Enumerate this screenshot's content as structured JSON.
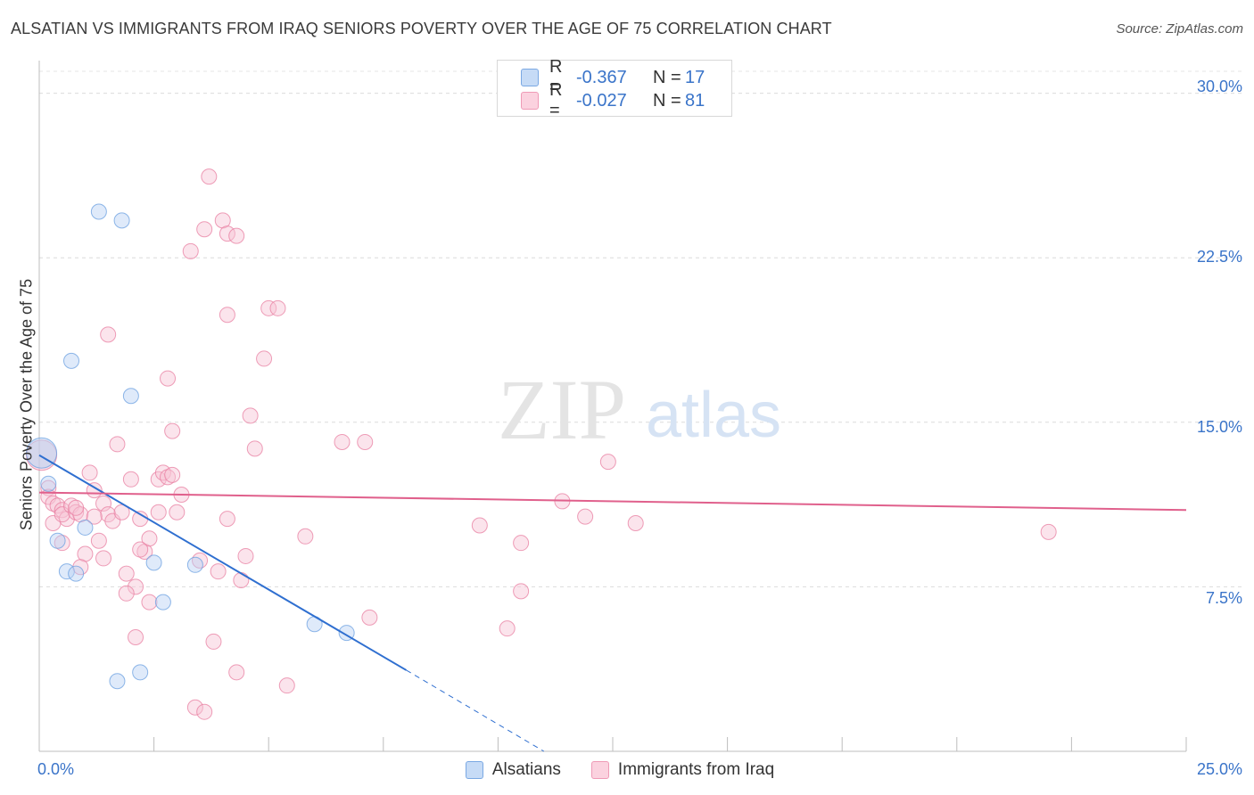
{
  "title": "ALSATIAN VS IMMIGRANTS FROM IRAQ SENIORS POVERTY OVER THE AGE OF 75 CORRELATION CHART",
  "source": "Source: ZipAtlas.com",
  "watermark": {
    "zip": "ZIP",
    "atlas": "atlas"
  },
  "legend_top": {
    "rows": [
      {
        "r_label": "R =",
        "r_value": "-0.367",
        "n_label": "N =",
        "n_value": "17",
        "color": "#a8c8f0"
      },
      {
        "r_label": "R =",
        "r_value": "-0.027",
        "n_label": "N =",
        "n_value": "81",
        "color": "#f5b8cb"
      }
    ]
  },
  "legend_bottom": [
    {
      "label": "Alsatians",
      "color": "#a8c8f0"
    },
    {
      "label": "Immigrants from Iraq",
      "color": "#f5b8cb"
    }
  ],
  "axes": {
    "x_min_label": "0.0%",
    "x_max_label": "25.0%",
    "y_ticks": [
      "30.0%",
      "22.5%",
      "15.0%",
      "7.5%"
    ],
    "ylabel": "Seniors Poverty Over the Age of 75"
  },
  "chart_data": {
    "type": "scatter",
    "title": "ALSATIAN VS IMMIGRANTS FROM IRAQ SENIORS POVERTY OVER THE AGE OF 75 CORRELATION CHART",
    "xlabel": "",
    "ylabel": "Seniors Poverty Over the Age of 75",
    "xlim": [
      0,
      25
    ],
    "ylim": [
      0,
      31
    ],
    "y_ticks": [
      7.5,
      15.0,
      22.5,
      30.0
    ],
    "grid": true,
    "legend_position": "top-center",
    "series": [
      {
        "name": "Alsatians",
        "color": "#6a9fe0",
        "fill": "#b7d1f3",
        "r": -0.367,
        "n": 17,
        "points": [
          [
            0.05,
            13.6
          ],
          [
            0.2,
            12.2
          ],
          [
            1.3,
            24.6
          ],
          [
            1.8,
            24.2
          ],
          [
            0.7,
            17.8
          ],
          [
            2.0,
            16.2
          ],
          [
            1.0,
            10.2
          ],
          [
            0.4,
            9.6
          ],
          [
            0.6,
            8.2
          ],
          [
            0.8,
            8.1
          ],
          [
            2.5,
            8.6
          ],
          [
            3.4,
            8.5
          ],
          [
            2.7,
            6.8
          ],
          [
            6.0,
            5.8
          ],
          [
            6.7,
            5.4
          ],
          [
            2.2,
            3.6
          ],
          [
            1.7,
            3.2
          ]
        ],
        "trend": {
          "x": [
            0.0,
            8.0
          ],
          "y": [
            13.5,
            3.7
          ],
          "dashed_to": [
            11.0,
            0.0
          ]
        }
      },
      {
        "name": "Immigrants from Iraq",
        "color": "#e87da0",
        "fill": "#f7c3d4",
        "r": -0.027,
        "n": 81,
        "points": [
          [
            0.05,
            13.5
          ],
          [
            0.2,
            12.0
          ],
          [
            0.2,
            11.6
          ],
          [
            0.3,
            11.3
          ],
          [
            0.4,
            11.2
          ],
          [
            0.5,
            11.0
          ],
          [
            0.6,
            10.6
          ],
          [
            0.3,
            10.4
          ],
          [
            0.5,
            10.8
          ],
          [
            0.7,
            11.2
          ],
          [
            0.8,
            10.9
          ],
          [
            0.9,
            10.8
          ],
          [
            1.1,
            12.7
          ],
          [
            1.2,
            11.9
          ],
          [
            1.4,
            11.3
          ],
          [
            1.5,
            10.8
          ],
          [
            1.6,
            10.5
          ],
          [
            1.3,
            9.6
          ],
          [
            1.0,
            9.0
          ],
          [
            0.9,
            8.4
          ],
          [
            1.4,
            8.8
          ],
          [
            0.5,
            9.5
          ],
          [
            1.8,
            10.9
          ],
          [
            1.7,
            14.0
          ],
          [
            1.5,
            19.0
          ],
          [
            2.0,
            12.4
          ],
          [
            2.2,
            10.6
          ],
          [
            2.3,
            9.1
          ],
          [
            2.4,
            9.7
          ],
          [
            1.9,
            8.1
          ],
          [
            2.1,
            7.5
          ],
          [
            1.9,
            7.2
          ],
          [
            2.4,
            6.8
          ],
          [
            2.1,
            5.2
          ],
          [
            2.6,
            12.4
          ],
          [
            2.7,
            12.7
          ],
          [
            2.8,
            12.5
          ],
          [
            2.9,
            12.6
          ],
          [
            2.6,
            10.9
          ],
          [
            3.0,
            10.9
          ],
          [
            3.1,
            11.7
          ],
          [
            2.8,
            17.0
          ],
          [
            2.9,
            14.6
          ],
          [
            3.3,
            22.8
          ],
          [
            3.6,
            23.8
          ],
          [
            3.7,
            26.2
          ],
          [
            4.0,
            24.2
          ],
          [
            4.1,
            23.6
          ],
          [
            4.3,
            23.5
          ],
          [
            4.1,
            19.9
          ],
          [
            4.1,
            10.6
          ],
          [
            3.5,
            8.7
          ],
          [
            3.9,
            8.2
          ],
          [
            3.8,
            5.0
          ],
          [
            3.4,
            2.0
          ],
          [
            3.6,
            1.8
          ],
          [
            4.5,
            8.9
          ],
          [
            4.4,
            7.8
          ],
          [
            4.3,
            3.6
          ],
          [
            4.6,
            15.3
          ],
          [
            4.7,
            13.8
          ],
          [
            5.0,
            20.2
          ],
          [
            5.2,
            20.2
          ],
          [
            4.9,
            17.9
          ],
          [
            5.4,
            3.0
          ],
          [
            5.8,
            9.8
          ],
          [
            6.6,
            14.1
          ],
          [
            7.1,
            14.1
          ],
          [
            7.2,
            6.1
          ],
          [
            9.6,
            10.3
          ],
          [
            10.2,
            5.6
          ],
          [
            10.5,
            9.5
          ],
          [
            10.5,
            7.3
          ],
          [
            11.4,
            11.4
          ],
          [
            11.9,
            10.7
          ],
          [
            12.4,
            13.2
          ],
          [
            13.0,
            10.4
          ],
          [
            22.0,
            10.0
          ],
          [
            0.8,
            11.1
          ],
          [
            1.2,
            10.7
          ],
          [
            2.2,
            9.2
          ]
        ],
        "trend": {
          "x": [
            0.0,
            25.0
          ],
          "y": [
            11.8,
            11.0
          ]
        }
      }
    ]
  }
}
